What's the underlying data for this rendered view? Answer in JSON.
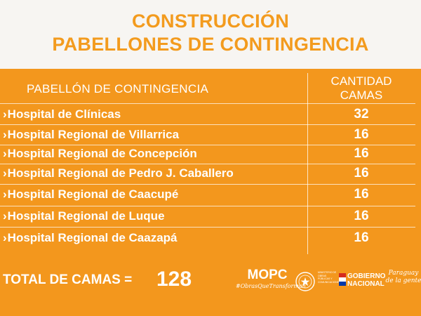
{
  "title": {
    "line1": "CONSTRUCCIÓN",
    "line2": "PABELLONES DE CONTINGENCIA"
  },
  "table": {
    "header_left": "PABELLÓN DE CONTINGENCIA",
    "header_right_line1": "CANTIDAD",
    "header_right_line2": "CAMAS",
    "rows": [
      {
        "name": "Hospital de Clínicas",
        "beds": "32"
      },
      {
        "name": "Hospital Regional de Villarrica",
        "beds": "16"
      },
      {
        "name": "Hospital Regional de Concepción",
        "beds": "16"
      },
      {
        "name": "Hospital Regional de Pedro J. Caballero",
        "beds": "16"
      },
      {
        "name": "Hospital Regional de Caacupé",
        "beds": "16"
      },
      {
        "name": "Hospital Regional de Luque",
        "beds": "16"
      },
      {
        "name": "Hospital Regional de Caazapá",
        "beds": "16"
      }
    ]
  },
  "total": {
    "label": "TOTAL DE CAMAS =",
    "value": "128"
  },
  "footer": {
    "mopc": "MOPC",
    "mopc_tagline": "#ObrasQueTransforman",
    "seal_text": "MINISTERIO DE OBRAS PÚBLICAS Y COMUNICACIONES",
    "gobierno_line1": "GOBIERNO",
    "gobierno_line2": "NACIONAL",
    "slogan": "Paraguay de la gente"
  },
  "colors": {
    "orange": "#f3971d",
    "title_orange": "#f39b1e",
    "background": "#f7f5f2",
    "text_white": "#ffffff"
  }
}
